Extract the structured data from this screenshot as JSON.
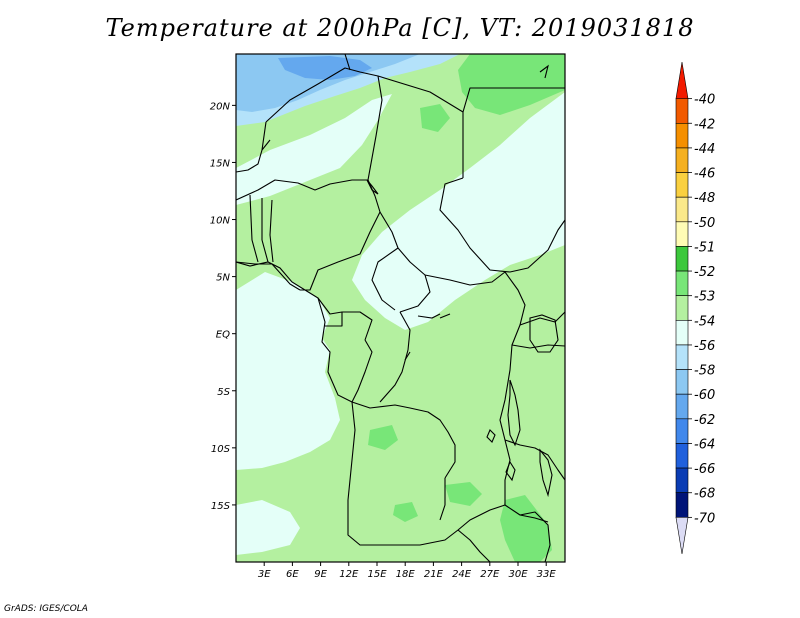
{
  "title": "Temperature at 200hPa [C], VT: 2019031818",
  "credit": "GrADS: IGES/COLA",
  "map": {
    "lat_ticks": [
      "20N",
      "15N",
      "10N",
      "5N",
      "EQ",
      "5S",
      "10S",
      "15S"
    ],
    "lat_values": [
      20,
      15,
      10,
      5,
      0,
      -5,
      -10,
      -15
    ],
    "lon_ticks": [
      "3E",
      "6E",
      "9E",
      "12E",
      "15E",
      "18E",
      "21E",
      "24E",
      "27E",
      "30E",
      "33E"
    ],
    "lon_values": [
      3,
      6,
      9,
      12,
      15,
      18,
      21,
      24,
      27,
      30,
      33
    ],
    "lat_range": [
      -20,
      24.5
    ],
    "lon_range": [
      0,
      35
    ]
  },
  "colorbar": {
    "labels": [
      "-40",
      "-42",
      "-44",
      "-46",
      "-48",
      "-50",
      "-51",
      "-52",
      "-53",
      "-54",
      "-56",
      "-58",
      "-60",
      "-62",
      "-64",
      "-66",
      "-68",
      "-70"
    ],
    "colors": [
      "#f21a00",
      "#f25a00",
      "#f58f00",
      "#f5b020",
      "#fad040",
      "#fbe98a",
      "#fffcb5",
      "#3cc83c",
      "#78e678",
      "#b4f0a0",
      "#e4fff8",
      "#b4e2fa",
      "#8cc8f2",
      "#64a8ee",
      "#4188ec",
      "#2060dc",
      "#0a3cb4",
      "#001478",
      "#dcdcf5"
    ]
  },
  "fill_colors": {
    "lightcyan": "#e4fff8",
    "lightgreen": "#b4f0a0",
    "green": "#78e678",
    "darkgreen": "#3cc83c",
    "lightblue": "#b4e2fa",
    "blue": "#8cc8f2",
    "medblue": "#64a8ee"
  }
}
